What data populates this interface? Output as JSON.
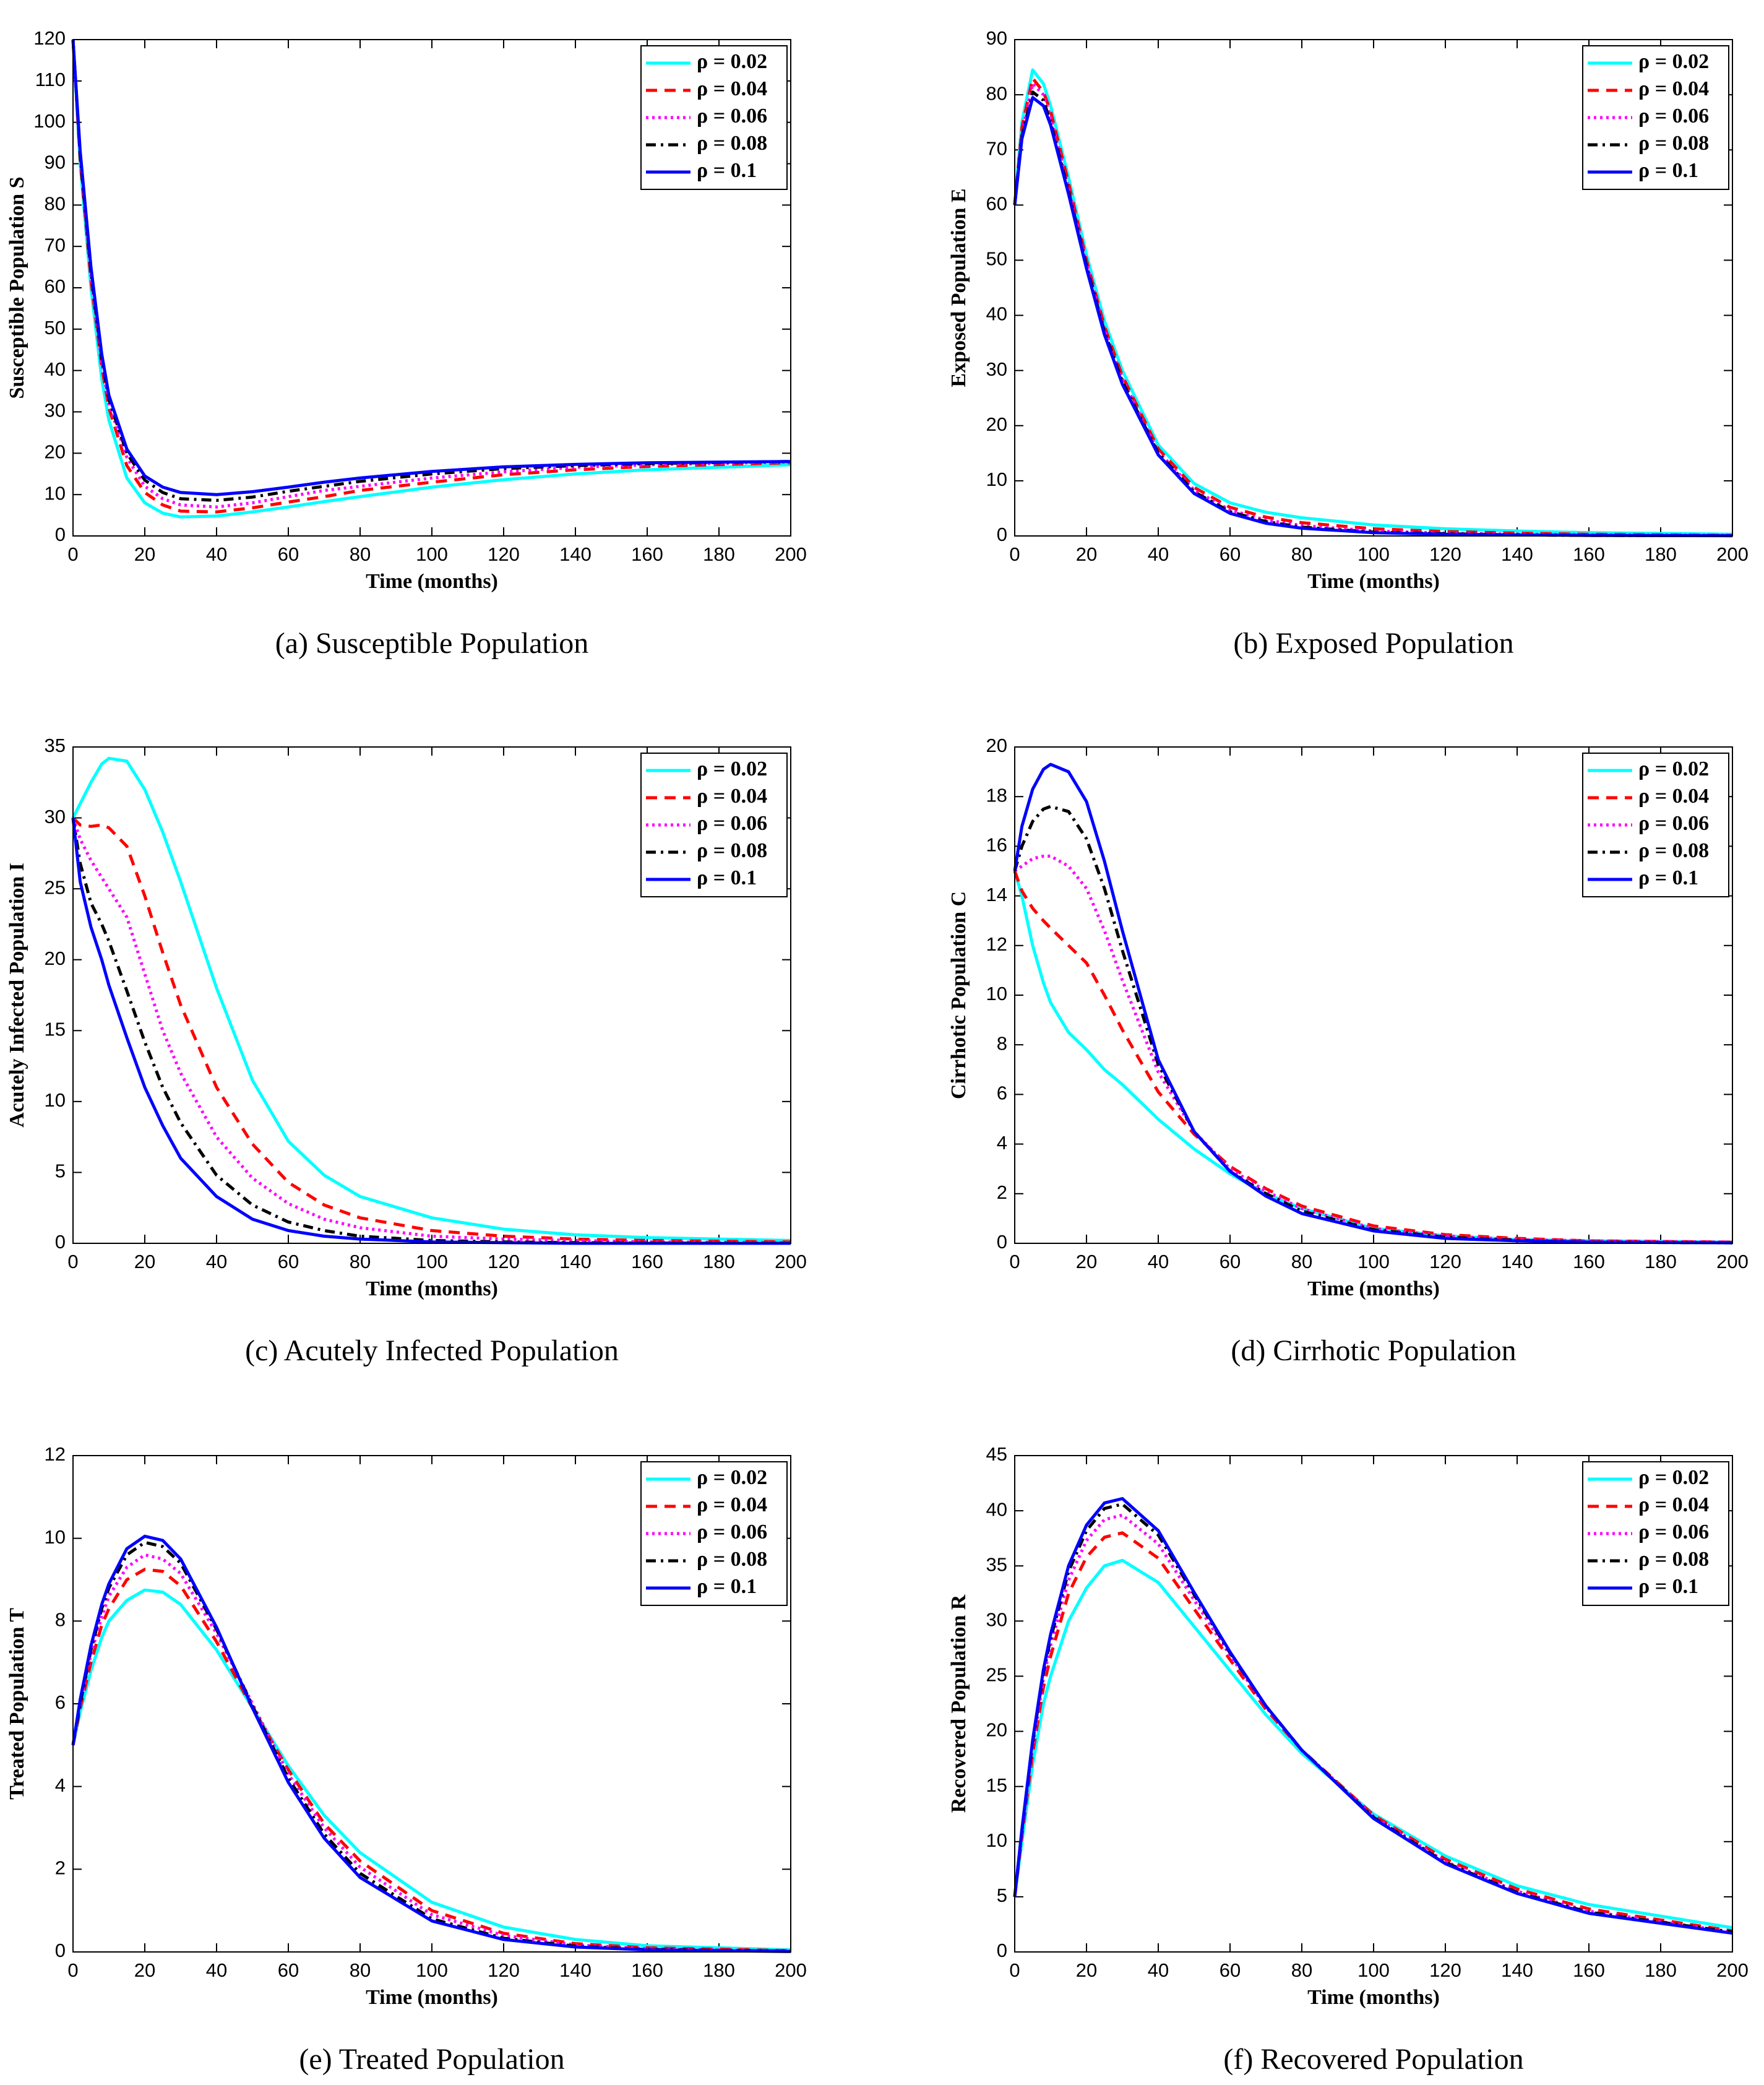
{
  "chart_data": [
    {
      "type": "line",
      "title": "(a) Susceptible Population",
      "xlabel": "Time (months)",
      "ylabel": "Susceptible Population S",
      "legend": "upper right",
      "xlim": [
        0,
        200
      ],
      "xticks": [
        0,
        20,
        40,
        60,
        80,
        100,
        120,
        140,
        160,
        180,
        200
      ],
      "ylim": [
        0,
        120
      ],
      "yticks": [
        0,
        10,
        20,
        30,
        40,
        50,
        60,
        70,
        80,
        90,
        100,
        110,
        120
      ],
      "x": [
        0,
        2,
        5,
        8,
        10,
        15,
        20,
        25,
        30,
        40,
        50,
        60,
        70,
        80,
        100,
        120,
        140,
        160,
        200
      ],
      "series": [
        {
          "name": "ρ = 0.02",
          "color": "#00ffff",
          "style": "solid",
          "values": [
            120,
            90,
            60,
            38,
            28,
            14,
            8,
            5.5,
            4.6,
            4.8,
            5.8,
            7,
            8.3,
            9.5,
            11.8,
            13.6,
            15,
            16,
            17.2
          ]
        },
        {
          "name": "ρ = 0.04",
          "color": "#ff0000",
          "style": "dashed",
          "values": [
            120,
            91,
            62,
            41,
            31,
            17,
            10.5,
            7.5,
            6,
            5.8,
            6.8,
            8.2,
            9.5,
            11,
            13,
            14.8,
            16,
            16.8,
            17.7
          ]
        },
        {
          "name": "ρ = 0.06",
          "color": "#ff00ff",
          "style": "dotted",
          "values": [
            120,
            92,
            63,
            42,
            32,
            19,
            12,
            9,
            7.5,
            7,
            8,
            9.5,
            11,
            12,
            14,
            15.5,
            16.6,
            17.2,
            17.9
          ]
        },
        {
          "name": "ρ = 0.08",
          "color": "#000000",
          "style": "dashdot",
          "values": [
            120,
            92,
            64,
            43,
            33,
            20,
            13.5,
            10.5,
            9,
            8.6,
            9.4,
            10.8,
            12,
            13.2,
            15,
            16.3,
            17,
            17.5,
            18
          ]
        },
        {
          "name": "ρ = 0.1",
          "color": "#0000ff",
          "style": "solid",
          "values": [
            120,
            93,
            65,
            44,
            34,
            21,
            14.5,
            11.8,
            10.5,
            10,
            10.7,
            11.8,
            13,
            14,
            15.6,
            16.7,
            17.3,
            17.7,
            18
          ]
        }
      ]
    },
    {
      "type": "line",
      "title": "(b) Exposed Population",
      "xlabel": "Time (months)",
      "ylabel": "Exposed Population E",
      "legend": "upper right",
      "xlim": [
        0,
        200
      ],
      "xticks": [
        0,
        20,
        40,
        60,
        80,
        100,
        120,
        140,
        160,
        180,
        200
      ],
      "ylim": [
        0,
        90
      ],
      "yticks": [
        0,
        10,
        20,
        30,
        40,
        50,
        60,
        70,
        80,
        90
      ],
      "x": [
        0,
        2,
        5,
        8,
        10,
        15,
        20,
        25,
        30,
        40,
        50,
        60,
        70,
        80,
        100,
        120,
        140,
        160,
        200
      ],
      "series": [
        {
          "name": "ρ = 0.02",
          "color": "#00ffff",
          "style": "solid",
          "values": [
            60,
            75,
            84.5,
            82,
            78,
            65,
            51,
            39,
            30,
            16.5,
            9.5,
            6,
            4.3,
            3.3,
            2,
            1.3,
            0.9,
            0.6,
            0.3
          ]
        },
        {
          "name": "ρ = 0.04",
          "color": "#ff0000",
          "style": "dashed",
          "values": [
            60,
            74,
            83,
            80.5,
            77,
            64,
            50,
            38,
            29,
            15.8,
            8.8,
            5.2,
            3.4,
            2.4,
            1.3,
            0.8,
            0.5,
            0.3,
            0.1
          ]
        },
        {
          "name": "ρ = 0.06",
          "color": "#ff00ff",
          "style": "dotted",
          "values": [
            60,
            73,
            82,
            80,
            76,
            63,
            49.5,
            37.5,
            28.5,
            15.3,
            8.3,
            4.7,
            2.9,
            1.9,
            0.9,
            0.5,
            0.3,
            0.2,
            0.1
          ]
        },
        {
          "name": "ρ = 0.08",
          "color": "#000000",
          "style": "dashdot",
          "values": [
            60,
            72.5,
            80.5,
            79,
            75,
            62.5,
            49,
            37,
            28,
            15,
            8,
            4.4,
            2.6,
            1.6,
            0.7,
            0.4,
            0.2,
            0.1,
            0.05
          ]
        },
        {
          "name": "ρ = 0.1",
          "color": "#0000ff",
          "style": "solid",
          "values": [
            60,
            72,
            79.5,
            78,
            74.5,
            62,
            48.5,
            36.5,
            27.5,
            14.7,
            7.7,
            4.1,
            2.3,
            1.4,
            0.6,
            0.3,
            0.2,
            0.1,
            0.05
          ]
        }
      ]
    },
    {
      "type": "line",
      "title": "(c) Acutely Infected Population",
      "xlabel": "Time (months)",
      "ylabel": "Acutely Infected Population I",
      "legend": "upper right",
      "xlim": [
        0,
        200
      ],
      "xticks": [
        0,
        20,
        40,
        60,
        80,
        100,
        120,
        140,
        160,
        180,
        200
      ],
      "ylim": [
        0,
        35
      ],
      "yticks": [
        0,
        5,
        10,
        15,
        20,
        25,
        30,
        35
      ],
      "x": [
        0,
        2,
        5,
        8,
        10,
        15,
        20,
        25,
        30,
        40,
        50,
        60,
        70,
        80,
        100,
        120,
        140,
        160,
        200
      ],
      "series": [
        {
          "name": "ρ = 0.02",
          "color": "#00ffff",
          "style": "solid",
          "values": [
            30,
            31,
            32.5,
            33.8,
            34.2,
            34,
            32,
            29,
            25.5,
            18,
            11.5,
            7.2,
            4.8,
            3.3,
            1.8,
            1,
            0.6,
            0.4,
            0.2
          ]
        },
        {
          "name": "ρ = 0.04",
          "color": "#ff0000",
          "style": "dashed",
          "values": [
            30,
            29.5,
            29.4,
            29.5,
            29.3,
            28,
            24.5,
            20.5,
            16.8,
            11,
            7,
            4.3,
            2.7,
            1.8,
            0.9,
            0.5,
            0.3,
            0.2,
            0.1
          ]
        },
        {
          "name": "ρ = 0.06",
          "color": "#ff00ff",
          "style": "dotted",
          "values": [
            30,
            28.5,
            27,
            25.8,
            25,
            23,
            19,
            15,
            12,
            7.5,
            4.6,
            2.8,
            1.7,
            1.1,
            0.5,
            0.3,
            0.2,
            0.1,
            0.05
          ]
        },
        {
          "name": "ρ = 0.08",
          "color": "#000000",
          "style": "dashdot",
          "values": [
            30,
            26.8,
            24,
            22.5,
            21.3,
            17.8,
            14.2,
            11,
            8.5,
            4.8,
            2.7,
            1.5,
            0.9,
            0.5,
            0.2,
            0.1,
            0.05,
            0.02,
            0
          ]
        },
        {
          "name": "ρ = 0.1",
          "color": "#0000ff",
          "style": "solid",
          "values": [
            30,
            25.5,
            22.3,
            20,
            18.2,
            14.5,
            11,
            8.3,
            6,
            3.3,
            1.7,
            0.9,
            0.5,
            0.3,
            0.1,
            0.05,
            0,
            0,
            0
          ]
        }
      ]
    },
    {
      "type": "line",
      "title": "(d) Cirrhotic Population",
      "xlabel": "Time (months)",
      "ylabel": "Cirrhotic Population C",
      "legend": "upper right",
      "xlim": [
        0,
        200
      ],
      "xticks": [
        0,
        20,
        40,
        60,
        80,
        100,
        120,
        140,
        160,
        180,
        200
      ],
      "ylim": [
        0,
        20
      ],
      "yticks": [
        0,
        2,
        4,
        6,
        8,
        10,
        12,
        14,
        16,
        18,
        20
      ],
      "x": [
        0,
        2,
        5,
        8,
        10,
        15,
        20,
        25,
        30,
        40,
        50,
        60,
        70,
        80,
        100,
        120,
        140,
        160,
        200
      ],
      "series": [
        {
          "name": "ρ = 0.02",
          "color": "#00ffff",
          "style": "solid",
          "values": [
            15,
            14,
            12,
            10.5,
            9.7,
            8.5,
            7.8,
            7,
            6.4,
            5,
            3.8,
            2.8,
            2,
            1.4,
            0.6,
            0.3,
            0.15,
            0.1,
            0.05
          ]
        },
        {
          "name": "ρ = 0.04",
          "color": "#ff0000",
          "style": "dashed",
          "values": [
            15,
            14.2,
            13.5,
            13,
            12.7,
            12,
            11.3,
            10,
            8.6,
            6.1,
            4.4,
            3.1,
            2.2,
            1.5,
            0.7,
            0.35,
            0.2,
            0.1,
            0.05
          ]
        },
        {
          "name": "ρ = 0.06",
          "color": "#ff00ff",
          "style": "dotted",
          "values": [
            15,
            15.2,
            15.5,
            15.6,
            15.6,
            15.2,
            14.3,
            12.6,
            10.6,
            6.9,
            4.5,
            3,
            2.1,
            1.4,
            0.6,
            0.3,
            0.15,
            0.1,
            0.05
          ]
        },
        {
          "name": "ρ = 0.08",
          "color": "#000000",
          "style": "dashdot",
          "values": [
            15,
            16,
            17,
            17.5,
            17.6,
            17.4,
            16.3,
            14.3,
            11.8,
            7.2,
            4.5,
            2.9,
            2,
            1.3,
            0.55,
            0.25,
            0.12,
            0.05,
            0.02
          ]
        },
        {
          "name": "ρ = 0.1",
          "color": "#0000ff",
          "style": "solid",
          "values": [
            15,
            16.8,
            18.3,
            19.1,
            19.3,
            19,
            17.8,
            15.4,
            12.6,
            7.4,
            4.5,
            2.9,
            1.9,
            1.2,
            0.5,
            0.2,
            0.1,
            0.05,
            0.02
          ]
        }
      ]
    },
    {
      "type": "line",
      "title": "(e) Treated Population",
      "xlabel": "Time (months)",
      "ylabel": "Treated Population T",
      "legend": "upper right",
      "xlim": [
        0,
        200
      ],
      "xticks": [
        0,
        20,
        40,
        60,
        80,
        100,
        120,
        140,
        160,
        180,
        200
      ],
      "ylim": [
        0,
        12
      ],
      "yticks": [
        0,
        2,
        4,
        6,
        8,
        10,
        12
      ],
      "x": [
        0,
        2,
        5,
        8,
        10,
        15,
        20,
        25,
        30,
        40,
        50,
        60,
        70,
        80,
        100,
        120,
        140,
        160,
        200
      ],
      "series": [
        {
          "name": "ρ = 0.02",
          "color": "#00ffff",
          "style": "solid",
          "values": [
            5,
            5.8,
            6.8,
            7.6,
            8,
            8.5,
            8.75,
            8.7,
            8.4,
            7.3,
            5.9,
            4.5,
            3.3,
            2.4,
            1.2,
            0.6,
            0.3,
            0.15,
            0.05
          ]
        },
        {
          "name": "ρ = 0.04",
          "color": "#ff0000",
          "style": "dashed",
          "values": [
            5,
            5.9,
            7,
            7.9,
            8.3,
            9,
            9.25,
            9.2,
            8.85,
            7.5,
            5.9,
            4.4,
            3.1,
            2.2,
            1,
            0.45,
            0.2,
            0.1,
            0.03
          ]
        },
        {
          "name": "ρ = 0.06",
          "color": "#ff00ff",
          "style": "dotted",
          "values": [
            5,
            6,
            7.2,
            8.1,
            8.6,
            9.3,
            9.6,
            9.5,
            9.15,
            7.7,
            6,
            4.3,
            3,
            2.05,
            0.9,
            0.4,
            0.17,
            0.08,
            0.02
          ]
        },
        {
          "name": "ρ = 0.08",
          "color": "#000000",
          "style": "dashdot",
          "values": [
            5,
            6,
            7.3,
            8.3,
            8.8,
            9.6,
            9.9,
            9.8,
            9.4,
            7.8,
            5.95,
            4.2,
            2.85,
            1.9,
            0.8,
            0.33,
            0.14,
            0.06,
            0.02
          ]
        },
        {
          "name": "ρ = 0.1",
          "color": "#0000ff",
          "style": "solid",
          "values": [
            5,
            6.1,
            7.4,
            8.4,
            8.9,
            9.75,
            10.05,
            9.95,
            9.5,
            7.85,
            5.9,
            4.1,
            2.75,
            1.8,
            0.75,
            0.3,
            0.12,
            0.05,
            0.01
          ]
        }
      ]
    },
    {
      "type": "line",
      "title": "(f) Recovered Population",
      "xlabel": "Time (months)",
      "ylabel": "Recovered Population R",
      "legend": "upper right",
      "xlim": [
        0,
        200
      ],
      "xticks": [
        0,
        20,
        40,
        60,
        80,
        100,
        120,
        140,
        160,
        180,
        200
      ],
      "ylim": [
        0,
        45
      ],
      "yticks": [
        0,
        5,
        10,
        15,
        20,
        25,
        30,
        35,
        40,
        45
      ],
      "x": [
        0,
        2,
        5,
        8,
        10,
        15,
        20,
        25,
        30,
        40,
        50,
        60,
        70,
        80,
        100,
        120,
        140,
        160,
        200
      ],
      "series": [
        {
          "name": "ρ = 0.02",
          "color": "#00ffff",
          "style": "solid",
          "values": [
            5,
            10,
            17,
            22.5,
            25,
            30,
            33,
            35,
            35.5,
            33.5,
            29.5,
            25.5,
            21.5,
            18,
            12.5,
            8.7,
            6,
            4.3,
            2.2
          ]
        },
        {
          "name": "ρ = 0.04",
          "color": "#ff0000",
          "style": "dashed",
          "values": [
            5,
            10.5,
            18,
            24,
            26.8,
            32.5,
            35.8,
            37.6,
            38,
            35.7,
            31.1,
            26.5,
            22,
            18.3,
            12.4,
            8.4,
            5.7,
            3.9,
            1.9
          ]
        },
        {
          "name": "ρ = 0.06",
          "color": "#ff00ff",
          "style": "dotted",
          "values": [
            5,
            10.8,
            18.6,
            24.8,
            27.8,
            33.7,
            37.3,
            39.2,
            39.6,
            37,
            31.9,
            26.9,
            22.2,
            18.3,
            12.3,
            8.2,
            5.5,
            3.7,
            1.8
          ]
        },
        {
          "name": "ρ = 0.08",
          "color": "#000000",
          "style": "dashdot",
          "values": [
            5,
            11,
            19,
            25.3,
            28.4,
            34.5,
            38.2,
            40.2,
            40.6,
            37.8,
            32.4,
            27.1,
            22.3,
            18.3,
            12.2,
            8.1,
            5.4,
            3.6,
            1.8
          ]
        },
        {
          "name": "ρ = 0.1",
          "color": "#0000ff",
          "style": "solid",
          "values": [
            5,
            11.1,
            19.2,
            25.6,
            28.8,
            35,
            38.7,
            40.7,
            41.1,
            38.2,
            32.6,
            27.2,
            22.3,
            18.3,
            12.1,
            8,
            5.3,
            3.5,
            1.7
          ]
        }
      ]
    }
  ]
}
